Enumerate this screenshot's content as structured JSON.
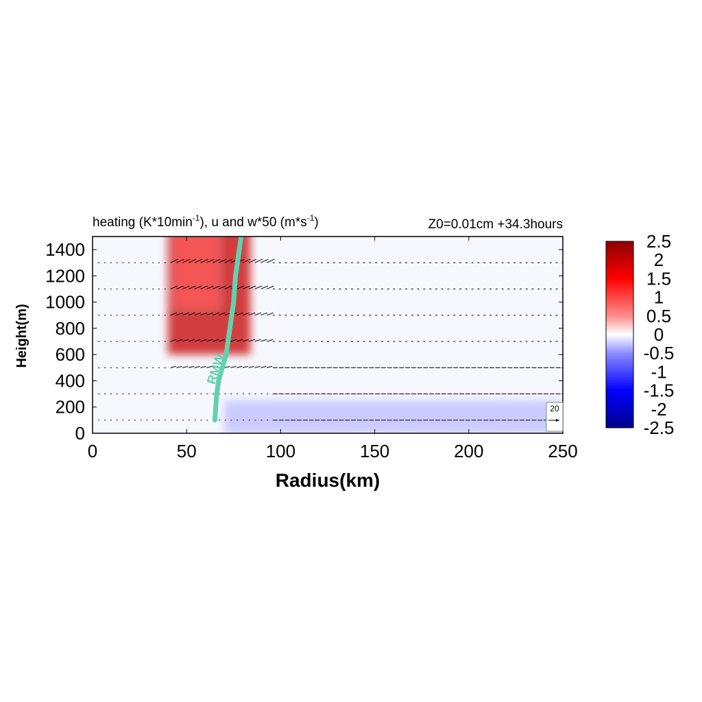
{
  "title": {
    "left": "heating (K*10min",
    "left_sup1": "-1",
    "left_mid": "), u and w*50 (m*s",
    "left_sup2": "-1",
    "left_end": ")",
    "right": "Z0=0.01cm  +34.3hours"
  },
  "colors": {
    "rmw_line": "#5fd3ae",
    "colormap": [
      "#00008b",
      "#0000ff",
      "#7f7fff",
      "#ffffff",
      "#ff7f7f",
      "#ff0000",
      "#8b0000"
    ]
  },
  "chart_data": {
    "type": "heatmap",
    "xlabel": "Radius(km)",
    "ylabel": "Height(m)",
    "xlim": [
      0,
      250
    ],
    "ylim": [
      0,
      1500
    ],
    "x_ticks": [
      "0",
      "50",
      "100",
      "150",
      "200",
      "250"
    ],
    "x_tick_values": [
      0,
      50,
      100,
      150,
      200,
      250
    ],
    "y_ticks": [
      "0",
      "200",
      "400",
      "600",
      "800",
      "1000",
      "1200",
      "1400"
    ],
    "y_tick_values": [
      0,
      200,
      400,
      600,
      800,
      1000,
      1200,
      1400
    ],
    "colorbar": {
      "range": [
        -2.5,
        2.5
      ],
      "tick_labels": [
        "2.5",
        "2",
        "1.5",
        "1",
        "0.5",
        "0",
        "-0.5",
        "-1",
        "-1.5",
        "-2",
        "-2.5"
      ],
      "tick_values": [
        2.5,
        2,
        1.5,
        1,
        0.5,
        0,
        -0.5,
        -1,
        -1.5,
        -2,
        -2.5
      ]
    },
    "heating_field_description": "positive heating core between 37 and 92 km radius, peaking near 50-65 km above 1000 m; weak negative values below 300 m outside 70 km",
    "heating_regions": [
      {
        "r_center": 62,
        "r_halfwidth": 22,
        "z_center": 1300,
        "z_halfwidth": 700,
        "value": 2.0
      },
      {
        "r_center": 55,
        "r_halfwidth": 12,
        "z_center": 1300,
        "z_halfwidth": 350,
        "value": 1.0
      },
      {
        "r_center": 160,
        "r_halfwidth": 90,
        "z_center": 0,
        "z_halfwidth": 250,
        "value": -0.5
      }
    ],
    "rmw_line": {
      "label": "RMW",
      "r": [
        65,
        66,
        67,
        69,
        71,
        73,
        75,
        76,
        77,
        78,
        79
      ],
      "z": [
        100,
        300,
        400,
        500,
        600,
        800,
        1000,
        1200,
        1300,
        1400,
        1500
      ]
    },
    "vector_levels_m": [
      100,
      300,
      500,
      700,
      900,
      1100,
      1300
    ],
    "reference_vector": {
      "label": "20",
      "magnitude": 20
    }
  }
}
